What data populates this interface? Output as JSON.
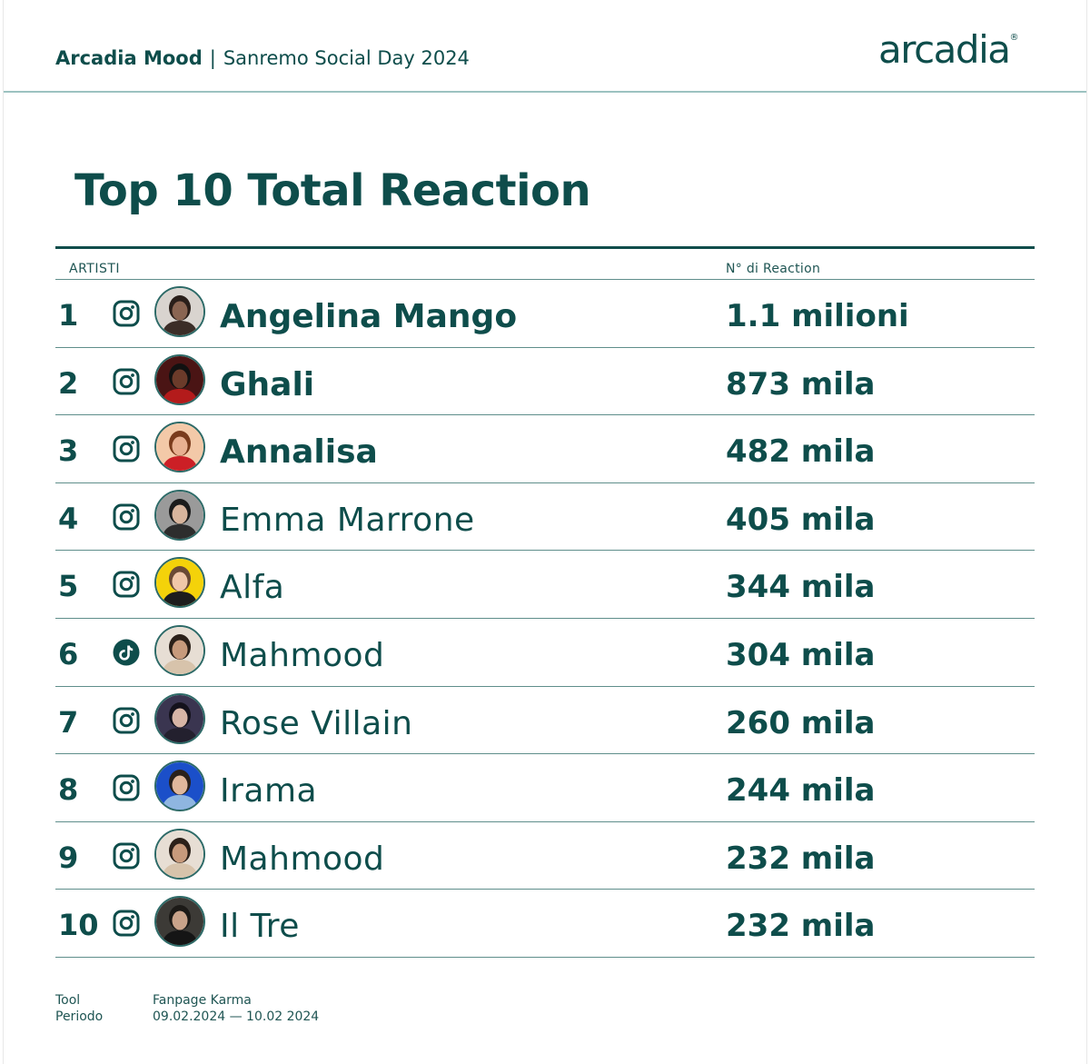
{
  "header": {
    "brand": "Arcadia Mood",
    "separator": "|",
    "event": "Sanremo Social Day 2024",
    "logo_text": "arcadia",
    "logo_mark": "®"
  },
  "heading": "Top 10 Total Reaction",
  "table": {
    "col_artists": "ARTISTI",
    "col_reactions": "N° di Reaction",
    "rows": [
      {
        "rank": "1",
        "platform": "instagram-icon",
        "artist": "Angelina Mango",
        "value": "1.1 milioni",
        "bold": true,
        "avatar_bg": "#d9d4cf",
        "skin": "#8a6552",
        "hair": "#2a1f1a",
        "cloth": "#3b2d27"
      },
      {
        "rank": "2",
        "platform": "instagram-icon",
        "artist": "Ghali",
        "value": "873 mila",
        "bold": true,
        "avatar_bg": "#4a1414",
        "skin": "#6b3b2a",
        "hair": "#111111",
        "cloth": "#b31b1b"
      },
      {
        "rank": "3",
        "platform": "instagram-icon",
        "artist": "Annalisa",
        "value": "482 mila",
        "bold": true,
        "avatar_bg": "#f3c9a8",
        "skin": "#e8b091",
        "hair": "#7a3b1c",
        "cloth": "#cc1f26"
      },
      {
        "rank": "4",
        "platform": "instagram-icon",
        "artist": "Emma Marrone",
        "value": "405 mila",
        "bold": false,
        "avatar_bg": "#9a9a9a",
        "skin": "#d8b59d",
        "hair": "#1b1b1b",
        "cloth": "#2d2d2d"
      },
      {
        "rank": "5",
        "platform": "instagram-icon",
        "artist": "Alfa",
        "value": "344 mila",
        "bold": false,
        "avatar_bg": "#f4d20a",
        "skin": "#f0c7a8",
        "hair": "#6a4a35",
        "cloth": "#1d1d1d"
      },
      {
        "rank": "6",
        "platform": "tiktok-icon",
        "artist": "Mahmood",
        "value": "304 mila",
        "bold": false,
        "avatar_bg": "#e7ded4",
        "skin": "#c79a7c",
        "hair": "#2b2019",
        "cloth": "#d7c3ab"
      },
      {
        "rank": "7",
        "platform": "instagram-icon",
        "artist": "Rose Villain",
        "value": "260 mila",
        "bold": false,
        "avatar_bg": "#3a3550",
        "skin": "#d7b5a6",
        "hair": "#14121c",
        "cloth": "#23202e"
      },
      {
        "rank": "8",
        "platform": "instagram-icon",
        "artist": "Irama",
        "value": "244 mila",
        "bold": false,
        "avatar_bg": "#1b4fc9",
        "skin": "#e0b89c",
        "hair": "#2a211a",
        "cloth": "#8fb6e0"
      },
      {
        "rank": "9",
        "platform": "instagram-icon",
        "artist": "Mahmood",
        "value": "232 mila",
        "bold": false,
        "avatar_bg": "#e7ded4",
        "skin": "#c79a7c",
        "hair": "#2b2019",
        "cloth": "#d7c3ab"
      },
      {
        "rank": "10",
        "platform": "instagram-icon",
        "artist": "Il Tre",
        "value": "232 mila",
        "bold": false,
        "avatar_bg": "#3c3a36",
        "skin": "#c9a38a",
        "hair": "#1c1a17",
        "cloth": "#151515"
      }
    ]
  },
  "footer": {
    "tool_label": "Tool",
    "period_label": "Periodo",
    "tool_value": "Fanpage Karma",
    "period_value": "09.02.2024 — 10.02 2024"
  },
  "colors": {
    "primary": "#0e4d4b",
    "rule": "#5f8e8b",
    "header_rule": "#9cc2c0"
  }
}
